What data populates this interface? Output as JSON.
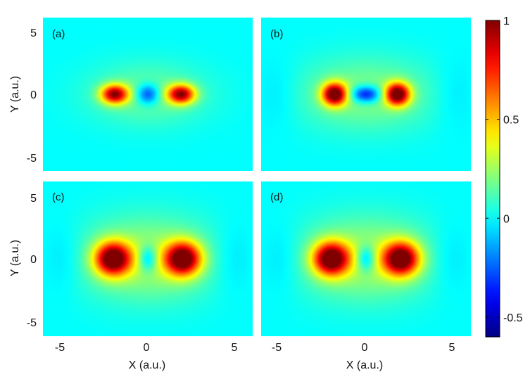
{
  "chart_data": {
    "type": "heatmap",
    "colormap": "jet",
    "colorbar": {
      "range": [
        -0.6,
        1.0
      ],
      "ticks": [
        1,
        0.5,
        0,
        -0.5
      ],
      "tick_labels": [
        "1",
        "0.5",
        "0",
        "-0.5"
      ]
    },
    "xlabel": "X (a.u.)",
    "ylabel": "Y (a.u.)",
    "xlim": [
      -6,
      6
    ],
    "ylim": [
      -6,
      6
    ],
    "xticks": [
      -5,
      0,
      5
    ],
    "xtick_labels": [
      "-5",
      "0",
      "5"
    ],
    "yticks": [
      5,
      0,
      -5
    ],
    "ytick_labels": [
      "5",
      "0",
      "-5"
    ],
    "panels": [
      {
        "label": "(a)",
        "features": [
          {
            "kind": "positive-lobe",
            "x": -1.9,
            "y": 0,
            "peak": 0.88,
            "rx": 0.9,
            "ry": 0.85
          },
          {
            "kind": "negative-lobe",
            "x": 0,
            "y": 0,
            "peak": -0.42,
            "rx": 0.75,
            "ry": 0.9
          },
          {
            "kind": "positive-lobe",
            "x": 1.9,
            "y": 0,
            "peak": 0.88,
            "rx": 0.9,
            "ry": 0.85
          }
        ],
        "halo": {
          "peak": 0.18,
          "rx": 3.4,
          "ry": 2.4
        }
      },
      {
        "label": "(b)",
        "features": [
          {
            "kind": "positive-lobe",
            "x": -1.8,
            "y": 0,
            "peak": 1.0,
            "rx": 0.8,
            "ry": 1.0
          },
          {
            "kind": "negative-lobe",
            "x": 0,
            "y": 0,
            "peak": -0.55,
            "rx": 1.0,
            "ry": 0.75
          },
          {
            "kind": "positive-lobe",
            "x": 1.8,
            "y": 0,
            "peak": 1.0,
            "rx": 0.8,
            "ry": 1.0
          }
        ],
        "halo": {
          "peak": 0.22,
          "rx": 4.0,
          "ry": 2.8
        },
        "side_dips": {
          "x": 5.0,
          "value": -0.06
        }
      },
      {
        "label": "(c)",
        "features": [
          {
            "kind": "positive-lobe",
            "x": -2.0,
            "y": 0,
            "peak": 1.0,
            "rx": 1.15,
            "ry": 1.45
          },
          {
            "kind": "negative-lobe",
            "x": 0,
            "y": 0,
            "peak": -0.35,
            "rx": 0.6,
            "ry": 1.15
          },
          {
            "kind": "positive-lobe",
            "x": 2.0,
            "y": 0,
            "peak": 1.0,
            "rx": 1.15,
            "ry": 1.45
          }
        ],
        "halo": {
          "peak": 0.3,
          "rx": 3.9,
          "ry": 3.1
        },
        "side_dips": {
          "x": 4.8,
          "value": -0.08
        }
      },
      {
        "label": "(d)",
        "features": [
          {
            "kind": "positive-lobe",
            "x": -2.0,
            "y": 0,
            "peak": 1.0,
            "rx": 1.15,
            "ry": 1.45
          },
          {
            "kind": "negative-lobe",
            "x": 0,
            "y": 0,
            "peak": -0.35,
            "rx": 0.6,
            "ry": 1.15
          },
          {
            "kind": "positive-lobe",
            "x": 2.0,
            "y": 0,
            "peak": 1.0,
            "rx": 1.15,
            "ry": 1.45
          }
        ],
        "halo": {
          "peak": 0.3,
          "rx": 3.9,
          "ry": 3.1
        },
        "side_dips": {
          "x": 4.8,
          "value": -0.08
        }
      }
    ]
  }
}
